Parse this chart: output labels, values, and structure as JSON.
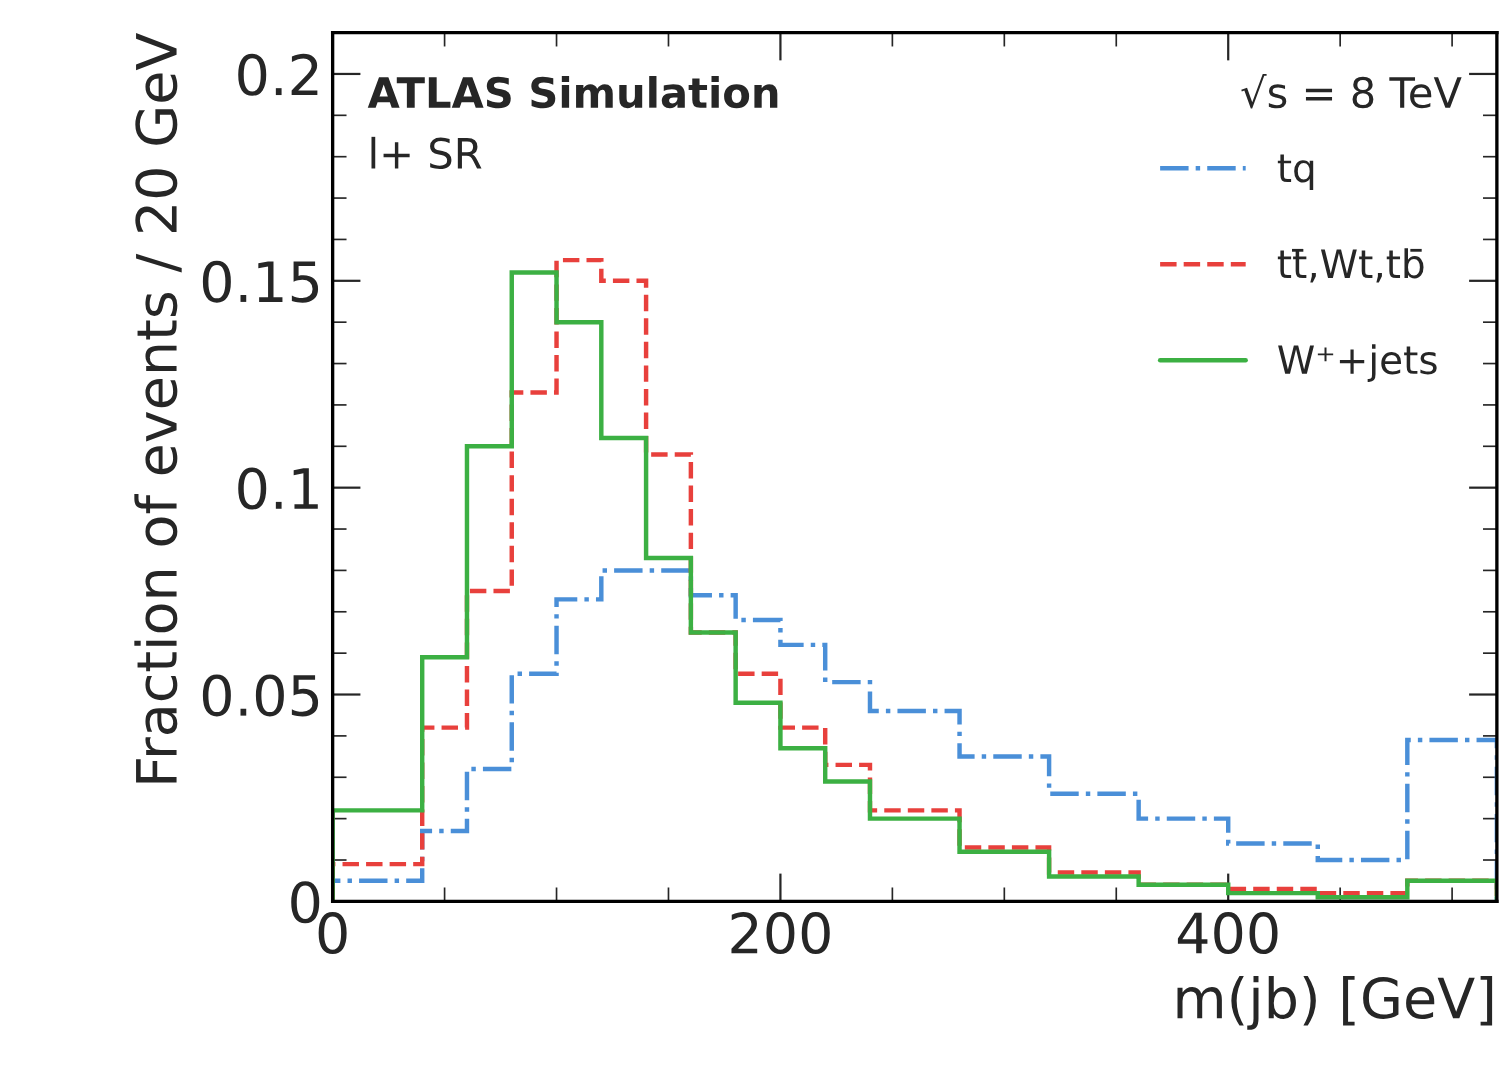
{
  "chart_data": {
    "type": "histogram",
    "xlabel": "m(jb) [GeV]",
    "ylabel": "Fraction of events / 20 GeV",
    "annotations": [
      "ATLAS Simulation",
      "l+ SR",
      "√s = 8 TeV"
    ],
    "bins": [
      0,
      40,
      60,
      80,
      100,
      120,
      140,
      160,
      180,
      200,
      220,
      240,
      280,
      320,
      360,
      400,
      440,
      480,
      520
    ],
    "series": [
      {
        "name": "tq",
        "color": "#4a8fd8",
        "line_style": "dashdot",
        "values": [
          0.005,
          0.017,
          0.032,
          0.055,
          0.073,
          0.08,
          0.08,
          0.074,
          0.068,
          0.062,
          0.053,
          0.046,
          0.035,
          0.026,
          0.02,
          0.014,
          0.01,
          0.039
        ]
      },
      {
        "name": "tt̄,Wt,tb̄",
        "color": "#e8403c",
        "line_style": "dashed",
        "values": [
          0.009,
          0.042,
          0.075,
          0.123,
          0.155,
          0.15,
          0.108,
          0.065,
          0.055,
          0.042,
          0.033,
          0.022,
          0.013,
          0.007,
          0.004,
          0.003,
          0.002,
          0.005
        ]
      },
      {
        "name": "W⁺+jets",
        "color": "#3cb043",
        "line_style": "solid",
        "values": [
          0.022,
          0.059,
          0.11,
          0.152,
          0.14,
          0.112,
          0.083,
          0.065,
          0.048,
          0.037,
          0.029,
          0.02,
          0.012,
          0.006,
          0.004,
          0.002,
          0.001,
          0.005
        ]
      }
    ],
    "xlim": [
      0,
      520
    ],
    "ylim": [
      0,
      0.21
    ],
    "xticks": [
      0,
      200,
      400
    ],
    "yticks": [
      0,
      0.05,
      0.1,
      0.15,
      0.2
    ],
    "legend": "right",
    "grid": false
  }
}
